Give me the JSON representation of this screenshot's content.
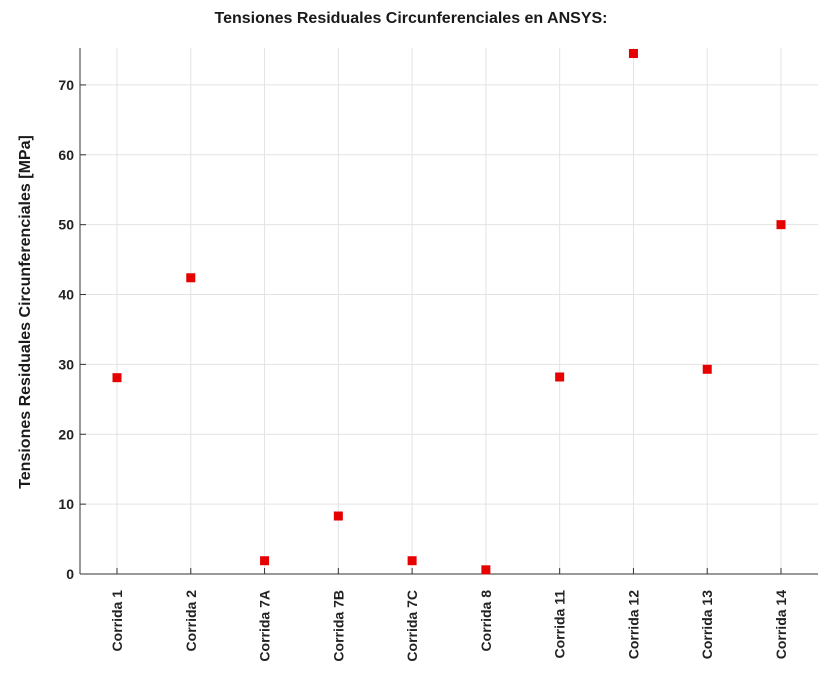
{
  "chart_data": {
    "type": "scatter",
    "title": "Tensiones Residuales Circunferenciales en ANSYS:",
    "xlabel": "",
    "ylabel": "Tensiones Residuales Circunferenciales [MPa]",
    "categories": [
      "Corrida 1",
      "Corrida 2",
      "Corrida 7A",
      "Corrida 7B",
      "Corrida 7C",
      "Corrida 8",
      "Corrida 11",
      "Corrida 12",
      "Corrida 13",
      "Corrida 14"
    ],
    "values": [
      28.1,
      42.4,
      1.9,
      8.3,
      1.9,
      0.6,
      28.2,
      74.5,
      29.3,
      50.0
    ],
    "ylim": [
      0,
      75
    ],
    "yticks": [
      0,
      10,
      20,
      30,
      40,
      50,
      60,
      70
    ],
    "grid": true,
    "marker": "square",
    "marker_color": "#e60000"
  }
}
